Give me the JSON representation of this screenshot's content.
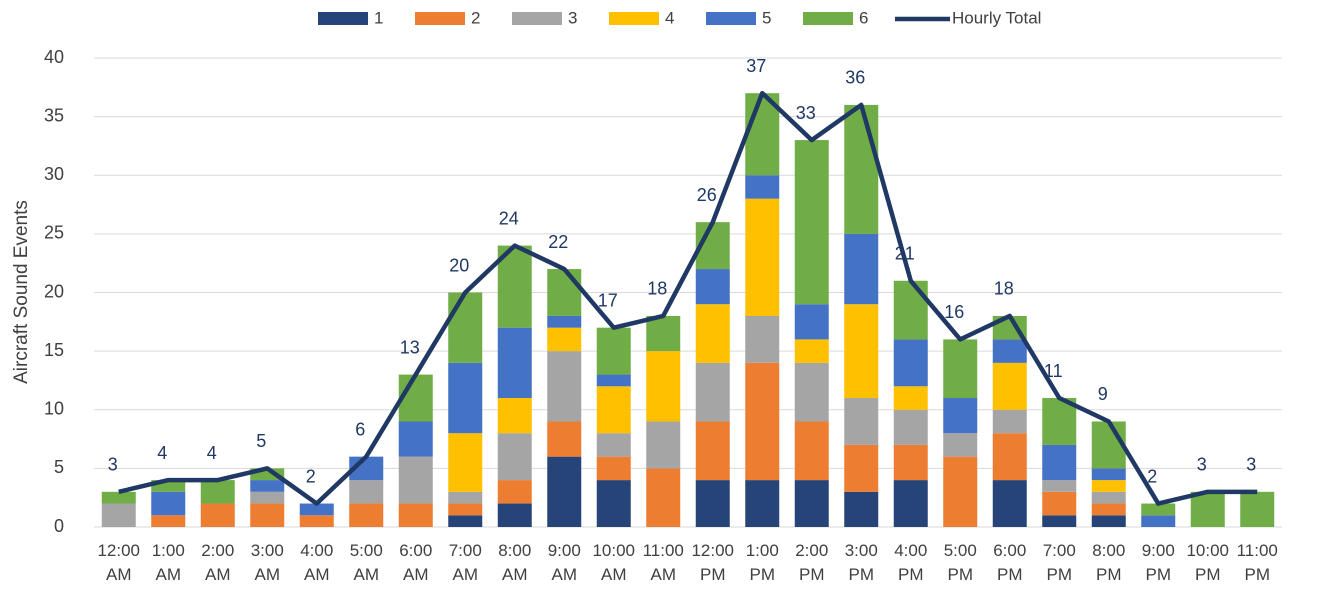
{
  "chart_data": {
    "type": "bar",
    "stacked": true,
    "y_label": "Aircraft Sound Events",
    "categories": [
      "12:00 AM",
      "1:00 AM",
      "2:00 AM",
      "3:00 AM",
      "4:00 AM",
      "5:00 AM",
      "6:00 AM",
      "7:00 AM",
      "8:00 AM",
      "9:00 AM",
      "10:00 AM",
      "11:00 AM",
      "12:00 PM",
      "1:00 PM",
      "2:00 PM",
      "3:00 PM",
      "4:00 PM",
      "5:00 PM",
      "6:00 PM",
      "7:00 PM",
      "8:00 PM",
      "9:00 PM",
      "10:00 PM",
      "11:00 PM"
    ],
    "series": [
      {
        "name": "1",
        "color": "#264478",
        "values": [
          0,
          0,
          0,
          0,
          0,
          0,
          0,
          1,
          2,
          6,
          4,
          0,
          4,
          4,
          4,
          3,
          4,
          0,
          4,
          1,
          1,
          0,
          0,
          0
        ]
      },
      {
        "name": "2",
        "color": "#ED7D31",
        "values": [
          0,
          1,
          2,
          2,
          1,
          2,
          2,
          1,
          2,
          3,
          2,
          5,
          5,
          10,
          5,
          4,
          3,
          6,
          4,
          2,
          1,
          0,
          0,
          0
        ]
      },
      {
        "name": "3",
        "color": "#A5A5A5",
        "values": [
          2,
          0,
          0,
          1,
          0,
          2,
          4,
          1,
          4,
          6,
          2,
          4,
          5,
          4,
          5,
          4,
          3,
          2,
          2,
          1,
          1,
          0,
          0,
          0
        ]
      },
      {
        "name": "4",
        "color": "#FFC000",
        "values": [
          0,
          0,
          0,
          0,
          0,
          0,
          0,
          5,
          3,
          2,
          4,
          6,
          5,
          10,
          2,
          8,
          2,
          0,
          4,
          0,
          1,
          0,
          0,
          0
        ]
      },
      {
        "name": "5",
        "color": "#4472C4",
        "values": [
          0,
          2,
          0,
          1,
          1,
          2,
          3,
          6,
          6,
          1,
          1,
          0,
          3,
          2,
          3,
          6,
          4,
          3,
          2,
          3,
          1,
          1,
          0,
          0
        ]
      },
      {
        "name": "6",
        "color": "#70AD47",
        "values": [
          1,
          1,
          2,
          1,
          0,
          0,
          4,
          6,
          7,
          4,
          4,
          3,
          4,
          7,
          14,
          11,
          5,
          5,
          2,
          4,
          4,
          1,
          3,
          3
        ]
      }
    ],
    "line": {
      "name": "Hourly Total",
      "color": "#203864",
      "values": [
        3,
        4,
        4,
        5,
        2,
        6,
        13,
        20,
        24,
        22,
        17,
        18,
        26,
        37,
        33,
        36,
        21,
        16,
        18,
        11,
        9,
        2,
        3,
        3
      ]
    },
    "ylim": [
      0,
      40
    ],
    "yticks": [
      0,
      5,
      10,
      15,
      20,
      25,
      30,
      35,
      40
    ],
    "grid": true,
    "legend": "top"
  }
}
